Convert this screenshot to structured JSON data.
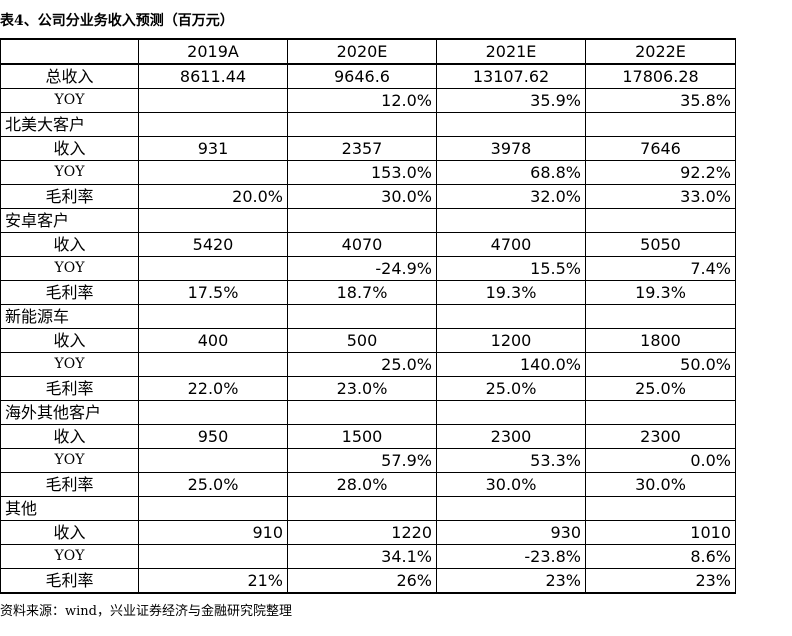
{
  "title": "表4、公司分业务收入预测（百万元）",
  "headers": [
    "",
    "2019A",
    "2020E",
    "2021E",
    "2022E"
  ],
  "rows": [
    {
      "type": "metric",
      "label": "总收入",
      "cells": [
        [
          "8611.44",
          "center"
        ],
        [
          "9646.6",
          "center"
        ],
        [
          "13107.62",
          "center"
        ],
        [
          "17806.28",
          "center"
        ]
      ]
    },
    {
      "type": "metric",
      "label": "YOY",
      "yoy": true,
      "cells": [
        [
          "",
          "center"
        ],
        [
          "12.0%",
          "right"
        ],
        [
          "35.9%",
          "right"
        ],
        [
          "35.8%",
          "right"
        ]
      ]
    },
    {
      "type": "section",
      "label": "北美大客户"
    },
    {
      "type": "metric",
      "label": "收入",
      "cells": [
        [
          "931",
          "center"
        ],
        [
          "2357",
          "center"
        ],
        [
          "3978",
          "center"
        ],
        [
          "7646",
          "center"
        ]
      ]
    },
    {
      "type": "metric",
      "label": "YOY",
      "yoy": true,
      "cells": [
        [
          "",
          "center"
        ],
        [
          "153.0%",
          "right"
        ],
        [
          "68.8%",
          "right"
        ],
        [
          "92.2%",
          "right"
        ]
      ]
    },
    {
      "type": "metric",
      "label": "毛利率",
      "cells": [
        [
          "20.0%",
          "right"
        ],
        [
          "30.0%",
          "right"
        ],
        [
          "32.0%",
          "right"
        ],
        [
          "33.0%",
          "right"
        ]
      ]
    },
    {
      "type": "section",
      "label": "安卓客户"
    },
    {
      "type": "metric",
      "label": "收入",
      "cells": [
        [
          "5420",
          "center"
        ],
        [
          "4070",
          "center"
        ],
        [
          "4700",
          "center"
        ],
        [
          "5050",
          "center"
        ]
      ]
    },
    {
      "type": "metric",
      "label": "YOY",
      "yoy": true,
      "cells": [
        [
          "",
          "center"
        ],
        [
          "-24.9%",
          "right"
        ],
        [
          "15.5%",
          "right"
        ],
        [
          "7.4%",
          "right"
        ]
      ]
    },
    {
      "type": "metric",
      "label": "毛利率",
      "cells": [
        [
          "17.5%",
          "center"
        ],
        [
          "18.7%",
          "center"
        ],
        [
          "19.3%",
          "center"
        ],
        [
          "19.3%",
          "center"
        ]
      ]
    },
    {
      "type": "section",
      "label": "新能源车"
    },
    {
      "type": "metric",
      "label": "收入",
      "cells": [
        [
          "400",
          "center"
        ],
        [
          "500",
          "center"
        ],
        [
          "1200",
          "center"
        ],
        [
          "1800",
          "center"
        ]
      ]
    },
    {
      "type": "metric",
      "label": "YOY",
      "yoy": true,
      "cells": [
        [
          "",
          "center"
        ],
        [
          "25.0%",
          "right"
        ],
        [
          "140.0%",
          "right"
        ],
        [
          "50.0%",
          "right"
        ]
      ]
    },
    {
      "type": "metric",
      "label": "毛利率",
      "cells": [
        [
          "22.0%",
          "center"
        ],
        [
          "23.0%",
          "center"
        ],
        [
          "25.0%",
          "center"
        ],
        [
          "25.0%",
          "center"
        ]
      ]
    },
    {
      "type": "section",
      "label": "海外其他客户"
    },
    {
      "type": "metric",
      "label": "收入",
      "cells": [
        [
          "950",
          "center"
        ],
        [
          "1500",
          "center"
        ],
        [
          "2300",
          "center"
        ],
        [
          "2300",
          "center"
        ]
      ]
    },
    {
      "type": "metric",
      "label": "YOY",
      "yoy": true,
      "cells": [
        [
          "",
          "center"
        ],
        [
          "57.9%",
          "right"
        ],
        [
          "53.3%",
          "right"
        ],
        [
          "0.0%",
          "right"
        ]
      ]
    },
    {
      "type": "metric",
      "label": "毛利率",
      "cells": [
        [
          "25.0%",
          "center"
        ],
        [
          "28.0%",
          "center"
        ],
        [
          "30.0%",
          "center"
        ],
        [
          "30.0%",
          "center"
        ]
      ]
    },
    {
      "type": "section",
      "label": "其他"
    },
    {
      "type": "metric",
      "label": "收入",
      "cells": [
        [
          "910",
          "right"
        ],
        [
          "1220",
          "right"
        ],
        [
          "930",
          "right"
        ],
        [
          "1010",
          "right"
        ]
      ]
    },
    {
      "type": "metric",
      "label": "YOY",
      "yoy": true,
      "cells": [
        [
          "",
          "right"
        ],
        [
          "34.1%",
          "right"
        ],
        [
          "-23.8%",
          "right"
        ],
        [
          "8.6%",
          "right"
        ]
      ]
    },
    {
      "type": "metric",
      "label": "毛利率",
      "cells": [
        [
          "21%",
          "right"
        ],
        [
          "26%",
          "right"
        ],
        [
          "23%",
          "right"
        ],
        [
          "23%",
          "right"
        ]
      ]
    }
  ],
  "source": "资料来源：wind，兴业证券经济与金融研究院整理"
}
